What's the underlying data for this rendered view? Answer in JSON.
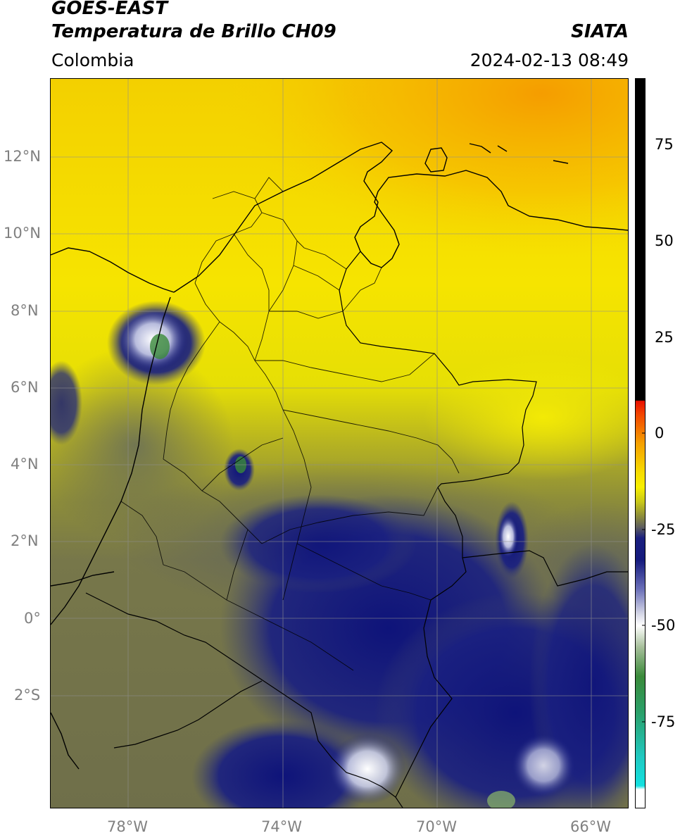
{
  "header": {
    "satellite": "GOES-EAST",
    "product": "Temperatura de Brillo CH09",
    "region": "Colombia",
    "agency": "SIATA",
    "timestamp": "2024-02-13 08:49"
  },
  "map": {
    "lat_ticks": [
      "12°N",
      "10°N",
      "8°N",
      "6°N",
      "4°N",
      "2°N",
      "0°",
      "2°S"
    ],
    "lon_ticks": [
      "78°W",
      "74°W",
      "70°W",
      "66°W"
    ],
    "lat_range": [
      -5,
      14
    ],
    "lon_range": [
      -80,
      -65
    ]
  },
  "colorbar": {
    "ticks": [
      "75",
      "50",
      "25",
      "0",
      "-25",
      "-50",
      "-75"
    ],
    "range": [
      -95,
      90
    ]
  },
  "colors": {
    "warm_orange": "#f7a800",
    "yellow": "#f9f000",
    "olive": "#8a8a3a",
    "gray": "#5e5e5e",
    "navy": "#111877",
    "white": "#ffffff",
    "green": "#3a8a3a",
    "cyan": "#1fd0d0",
    "red": "#e01010",
    "black": "#000000"
  }
}
